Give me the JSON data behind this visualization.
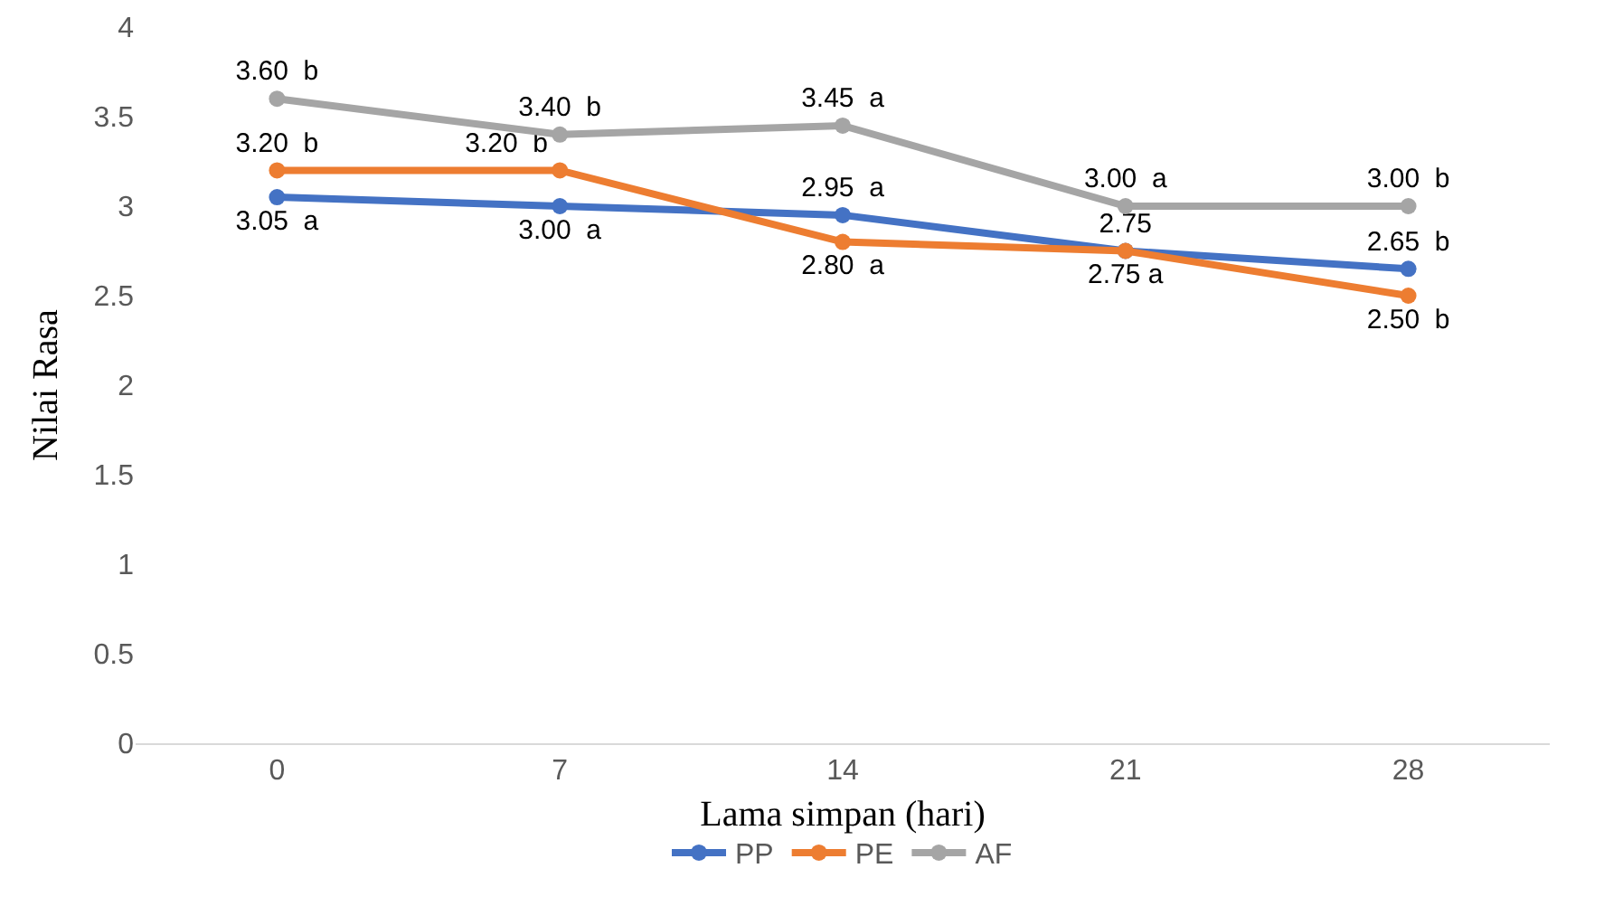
{
  "chart_data": {
    "type": "line",
    "xlabel": "Lama simpan (hari)",
    "ylabel": "Nilai Rasa",
    "categories": [
      "0",
      "7",
      "14",
      "21",
      "28"
    ],
    "series": [
      {
        "name": "PP",
        "color": "#4472c4",
        "values": [
          3.05,
          3.0,
          2.95,
          2.75,
          2.65
        ],
        "value_labels": [
          "3.05  a",
          "3.00  a",
          "2.95  a",
          "2.75",
          "2.65  b"
        ]
      },
      {
        "name": "PE",
        "color": "#ed7d31",
        "values": [
          3.2,
          3.2,
          2.8,
          2.75,
          2.5
        ],
        "value_labels": [
          "3.20  b",
          "3.20  b",
          "2.80  a",
          "2.75 a",
          "2.50  b"
        ]
      },
      {
        "name": "AF",
        "color": "#a5a5a5",
        "values": [
          3.6,
          3.4,
          3.45,
          3.0,
          3.0
        ],
        "value_labels": [
          "3.60  b",
          "3.40  b",
          "3.45  a",
          "3.00  a",
          "3.00  b"
        ]
      }
    ],
    "ylim": [
      0,
      4
    ],
    "yticks": [
      0,
      0.5,
      1,
      1.5,
      2,
      2.5,
      3,
      3.5,
      4
    ],
    "grid": false,
    "legend": "bottom",
    "marker": "circle",
    "line_style": "solid"
  }
}
